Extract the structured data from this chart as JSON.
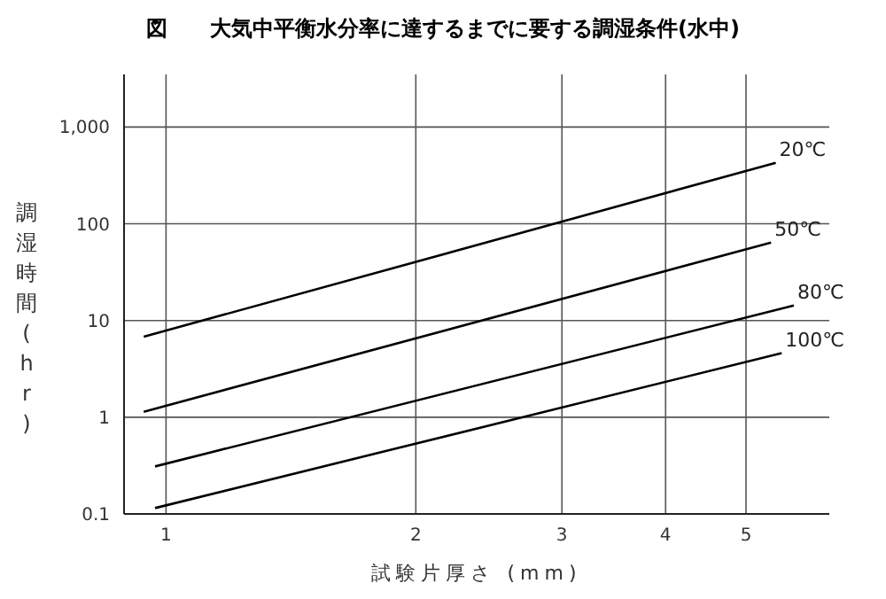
{
  "chart_data": {
    "type": "line",
    "title": "図　　大気中平衡水分率に達するまでに要する調湿条件(水中)",
    "xlabel": "試験片厚さ (mm)",
    "ylabel": "調湿時間(hr)",
    "log": "xy",
    "grid": true,
    "legend": false,
    "marker": "none",
    "line_style": "solid",
    "xlim": [
      0.89,
      6.3
    ],
    "xticks": [
      1,
      2,
      3,
      4,
      5
    ],
    "ylim": [
      0.1,
      3500
    ],
    "yticks": [
      0.1,
      1,
      10,
      100,
      {
        "value": 1000,
        "label": "1,000"
      }
    ],
    "series": [
      {
        "name": "20℃",
        "color": "#000000",
        "x": [
          0.94,
          5.43
        ],
        "values": [
          6.8,
          427
        ]
      },
      {
        "name": "50℃",
        "color": "#000000",
        "x": [
          0.94,
          5.36
        ],
        "values": [
          1.14,
          64
        ]
      },
      {
        "name": "80℃",
        "color": "#000000",
        "x": [
          0.97,
          5.71
        ],
        "values": [
          0.31,
          14.3
        ]
      },
      {
        "name": "100℃",
        "color": "#000000",
        "x": [
          0.97,
          5.52
        ],
        "values": [
          0.115,
          4.6
        ]
      }
    ]
  }
}
